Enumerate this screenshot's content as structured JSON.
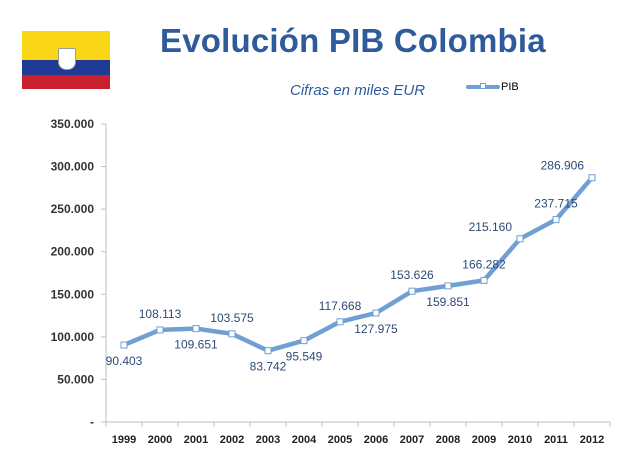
{
  "header": {
    "title": "Evolución PIB Colombia",
    "subtitle": "Cifras en miles EUR",
    "flag_icon": "colombia-flag-icon"
  },
  "colors": {
    "title": "#2e5b9c",
    "line": "#6f9fd3",
    "marker_fill": "#ffffff",
    "label": "#2e4a78",
    "axis": "#bfbfbf",
    "flag_yellow": "#f9d616",
    "flag_blue": "#1e3a94",
    "flag_red": "#c91f2f"
  },
  "chart_data": {
    "type": "line",
    "categories": [
      "1999",
      "2000",
      "2001",
      "2002",
      "2003",
      "2004",
      "2005",
      "2006",
      "2007",
      "2008",
      "2009",
      "2010",
      "2011",
      "2012"
    ],
    "series": [
      {
        "name": "PIB",
        "values": [
          90403,
          108113,
          109651,
          103575,
          83742,
          95549,
          117668,
          127975,
          153626,
          159851,
          166282,
          215160,
          237715,
          286906
        ]
      }
    ],
    "data_labels": [
      "90.403",
      "108.113",
      "109.651",
      "103.575",
      "83.742",
      "95.549",
      "117.668",
      "127.975",
      "153.626",
      "159.851",
      "166.282",
      "215.160",
      "237.715",
      "286.906"
    ],
    "label_positions": [
      "below",
      "above",
      "below",
      "above",
      "below",
      "below",
      "above",
      "below",
      "above",
      "below",
      "above",
      "left",
      "above",
      "left"
    ],
    "yticks": [
      0,
      50000,
      100000,
      150000,
      200000,
      250000,
      300000,
      350000
    ],
    "ytick_labels": [
      "-",
      "50.000",
      "100.000",
      "150.000",
      "200.000",
      "250.000",
      "300.000",
      "350.000"
    ],
    "ylim": [
      0,
      350000
    ],
    "title": "Evolución PIB Colombia",
    "subtitle": "Cifras en miles EUR",
    "legend": "top-right",
    "grid": false
  }
}
